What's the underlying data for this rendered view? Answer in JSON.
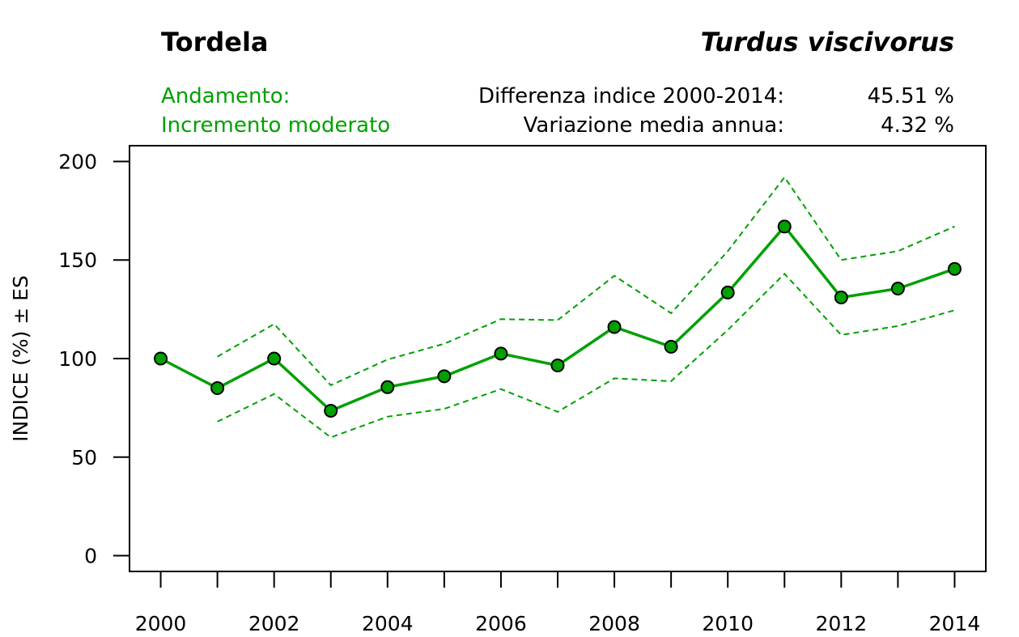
{
  "header": {
    "common_name": "Tordela",
    "scientific_name": "Turdus viscivorus",
    "trend_label": "Andamento:",
    "trend_value": "Incremento moderato",
    "diff_label": "Differenza indice 2000-2014:",
    "diff_value": "45.51 %",
    "avg_label": "Variazione media annua:",
    "avg_value": "4.32 %"
  },
  "colors": {
    "series": "#00a000",
    "marker_fill": "#00a000",
    "marker_stroke": "#000000"
  },
  "chart_data": {
    "type": "line",
    "title": "Tordela",
    "xlabel": "",
    "ylabel": "INDICE (%) ± ES",
    "x": [
      2000,
      2001,
      2002,
      2003,
      2004,
      2005,
      2006,
      2007,
      2008,
      2009,
      2010,
      2011,
      2012,
      2013,
      2014
    ],
    "xticks": [
      "2000",
      "",
      "2002",
      "",
      "2004",
      "",
      "2006",
      "",
      "2008",
      "",
      "2010",
      "",
      "2012",
      "",
      "2014"
    ],
    "yticks": [
      "0",
      "50",
      "100",
      "150",
      "200"
    ],
    "ylim": [
      -8,
      208
    ],
    "xlim": [
      1999.45,
      2014.55
    ],
    "series": [
      {
        "name": "Indice",
        "style": "solid",
        "markers": true,
        "values": [
          100,
          85,
          100,
          73.5,
          85.5,
          91,
          102.5,
          96.5,
          116,
          106,
          133.5,
          167,
          131,
          135.5,
          145.5
        ]
      },
      {
        "name": "Indice + ES",
        "style": "dashed",
        "markers": false,
        "values": [
          null,
          101,
          117.5,
          86.5,
          99.5,
          107.5,
          120,
          119.5,
          142,
          123,
          154.5,
          192,
          150,
          154.5,
          167
        ]
      },
      {
        "name": "Indice - ES",
        "style": "dashed",
        "markers": false,
        "values": [
          null,
          68,
          82,
          60,
          70.5,
          74.5,
          84.5,
          73,
          90,
          88.5,
          114.5,
          143,
          112,
          116.5,
          124.5
        ]
      }
    ]
  }
}
